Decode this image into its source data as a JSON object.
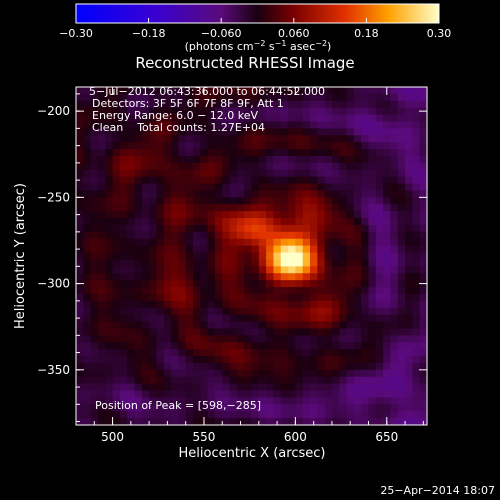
{
  "chart_data": {
    "type": "heatmap",
    "title": "Reconstructed RHESSI Image",
    "xlabel": "Heliocentric X (arcsec)",
    "ylabel": "Heliocentric Y (arcsec)",
    "xlim": [
      480,
      672
    ],
    "ylim": [
      -382,
      -186
    ],
    "xticks": [
      500,
      550,
      600,
      650
    ],
    "yticks": [
      -200,
      -250,
      -300,
      -350
    ],
    "xtick_labels": [
      "500",
      "550",
      "600",
      "650"
    ],
    "ytick_labels": [
      "−200",
      "−250",
      "−300",
      "−350"
    ],
    "colorbar": {
      "range": [
        -0.3,
        0.3
      ],
      "ticks": [
        -0.3,
        -0.18,
        -0.06,
        0.06,
        0.18,
        0.3
      ],
      "tick_labels": [
        "−0.30",
        "−0.18",
        "−0.060",
        "0.060",
        "0.18",
        "0.30"
      ],
      "unit_main": "(photons cm",
      "unit_sup1": "−2",
      "unit_mid": " s",
      "unit_sup2": "−1",
      "unit_mid2": " asec",
      "unit_sup3": "−2",
      "unit_end": ")"
    },
    "annotations": [
      "5−Jul−2012 06:43:36.000 to 06:44:52.000",
      "Detectors: 3F 5F 6F 7F 8F 9F, Att 1",
      "Energy Range: 6.0 − 12.0 keV",
      "Clean    Total counts: 1.27E+04"
    ],
    "peak_label": "Position of Peak = [598,−285]",
    "peak": {
      "x": 598,
      "y": -285,
      "value": 0.3
    },
    "sources": [
      {
        "x": 598,
        "y": -285,
        "amp": 0.31,
        "sx": 11,
        "sy": 11
      },
      {
        "x": 578,
        "y": -270,
        "amp": 0.12,
        "sx": 9,
        "sy": 7
      },
      {
        "x": 608,
        "y": -260,
        "amp": 0.06,
        "sx": 10,
        "sy": 8
      },
      {
        "x": 555,
        "y": -262,
        "amp": 0.05,
        "sx": 14,
        "sy": 9
      },
      {
        "x": 540,
        "y": -300,
        "amp": 0.045,
        "sx": 16,
        "sy": 10
      },
      {
        "x": 620,
        "y": -320,
        "amp": 0.04,
        "sx": 14,
        "sy": 12
      },
      {
        "x": 520,
        "y": -230,
        "amp": 0.035,
        "sx": 16,
        "sy": 12
      },
      {
        "x": 575,
        "y": -340,
        "amp": 0.03,
        "sx": 18,
        "sy": 10
      }
    ]
  },
  "footer": {
    "timestamp": "25−Apr−2014 18:07"
  }
}
